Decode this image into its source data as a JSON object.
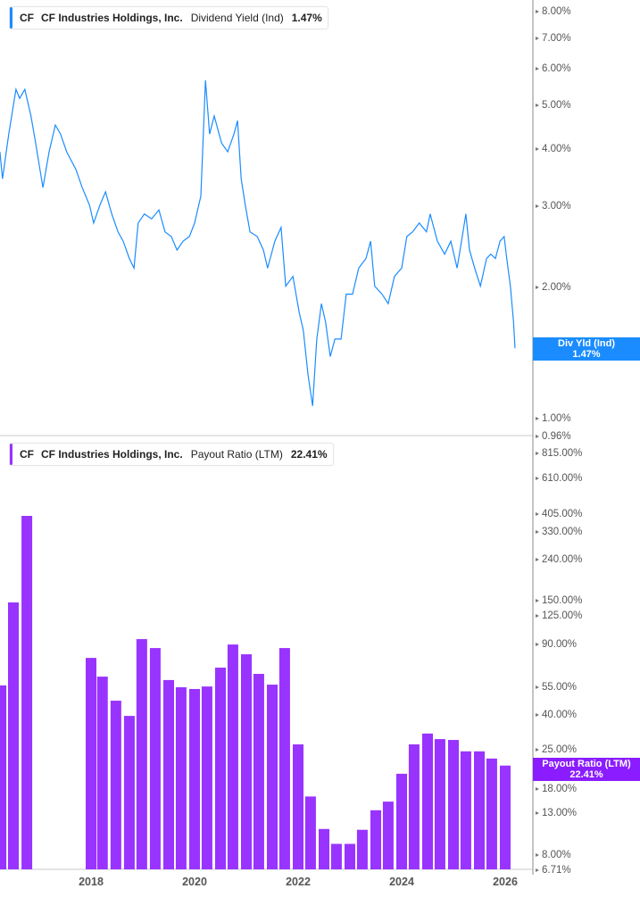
{
  "colors": {
    "yield_line": "#1a8cff",
    "payout_bars": "#9933ff",
    "payout_flag": "#8a1cff",
    "axis": "#b0b0b0"
  },
  "top_legend": {
    "ticker": "CF",
    "company": "CF Industries Holdings, Inc.",
    "metric": "Dividend Yield (Ind)",
    "value": "1.47%"
  },
  "bottom_legend": {
    "ticker": "CF",
    "company": "CF Industries Holdings, Inc.",
    "metric": "Payout Ratio (LTM)",
    "value": "22.41%"
  },
  "top_flag": {
    "label": "Div Yld (Ind)",
    "value": "1.47%"
  },
  "bottom_flag": {
    "label": "Payout Ratio (LTM)",
    "value": "22.41%"
  },
  "chart_data": [
    {
      "type": "line",
      "title": "Dividend Yield (Ind)",
      "yscale": "log",
      "ylim": [
        0.96,
        8.4
      ],
      "xlim": [
        2016.24,
        2026.35
      ],
      "y_ticks": [
        {
          "v": 8,
          "label": "8.00%"
        },
        {
          "v": 7,
          "label": "7.00%"
        },
        {
          "v": 6,
          "label": "6.00%"
        },
        {
          "v": 5,
          "label": "5.00%"
        },
        {
          "v": 4,
          "label": "4.00%"
        },
        {
          "v": 3,
          "label": "3.00%"
        },
        {
          "v": 2,
          "label": "2.00%"
        },
        {
          "v": 1,
          "label": "1.00%"
        },
        {
          "v": 0.96,
          "label": "0.96%"
        }
      ],
      "x": [
        2016.24,
        2016.29,
        2016.41,
        2016.55,
        2016.62,
        2016.72,
        2016.84,
        2016.93,
        2017.07,
        2017.19,
        2017.31,
        2017.41,
        2017.53,
        2017.71,
        2017.83,
        2017.97,
        2018.05,
        2018.17,
        2018.28,
        2018.4,
        2018.52,
        2018.62,
        2018.74,
        2018.83,
        2018.91,
        2019.03,
        2019.17,
        2019.31,
        2019.43,
        2019.55,
        2019.66,
        2019.78,
        2019.9,
        2020.0,
        2020.12,
        2020.21,
        2020.29,
        2020.38,
        2020.52,
        2020.64,
        2020.76,
        2020.83,
        2020.9,
        2020.98,
        2021.07,
        2021.21,
        2021.33,
        2021.41,
        2021.55,
        2021.67,
        2021.76,
        2021.9,
        2022.02,
        2022.1,
        2022.19,
        2022.28,
        2022.36,
        2022.45,
        2022.53,
        2022.62,
        2022.71,
        2022.83,
        2022.93,
        2023.05,
        2023.17,
        2023.31,
        2023.4,
        2023.48,
        2023.62,
        2023.74,
        2023.86,
        2024.0,
        2024.1,
        2024.21,
        2024.34,
        2024.48,
        2024.55,
        2024.69,
        2024.83,
        2024.95,
        2025.07,
        2025.17,
        2025.24,
        2025.31,
        2025.41,
        2025.52,
        2025.64,
        2025.72,
        2025.81,
        2025.9,
        2025.98,
        2026.03,
        2026.1,
        2026.16,
        2026.19
      ],
      "y": [
        3.95,
        3.45,
        4.32,
        5.41,
        5.17,
        5.41,
        4.73,
        4.13,
        3.3,
        3.95,
        4.52,
        4.32,
        3.95,
        3.61,
        3.3,
        3.02,
        2.76,
        3.02,
        3.23,
        2.89,
        2.64,
        2.52,
        2.31,
        2.2,
        2.76,
        2.89,
        2.82,
        2.95,
        2.64,
        2.58,
        2.41,
        2.52,
        2.58,
        2.76,
        3.16,
        5.66,
        4.32,
        4.73,
        4.13,
        3.95,
        4.32,
        4.62,
        3.45,
        3.02,
        2.64,
        2.58,
        2.41,
        2.2,
        2.52,
        2.7,
        2.01,
        2.11,
        1.76,
        1.61,
        1.29,
        1.1,
        1.54,
        1.84,
        1.68,
        1.41,
        1.54,
        1.54,
        1.93,
        1.93,
        2.2,
        2.31,
        2.52,
        2.01,
        1.93,
        1.84,
        2.11,
        2.2,
        2.58,
        2.64,
        2.76,
        2.64,
        2.89,
        2.52,
        2.36,
        2.52,
        2.2,
        2.58,
        2.89,
        2.41,
        2.2,
        2.01,
        2.31,
        2.36,
        2.31,
        2.52,
        2.58,
        2.31,
        2.01,
        1.68,
        1.47
      ]
    },
    {
      "type": "bar",
      "title": "Payout Ratio (LTM)",
      "yscale": "log",
      "ylim": [
        6.71,
        900
      ],
      "y_ticks": [
        {
          "v": 815,
          "label": "815.00%"
        },
        {
          "v": 610,
          "label": "610.00%"
        },
        {
          "v": 405,
          "label": "405.00%"
        },
        {
          "v": 330,
          "label": "330.00%"
        },
        {
          "v": 240,
          "label": "240.00%"
        },
        {
          "v": 150,
          "label": "150.00%"
        },
        {
          "v": 125,
          "label": "125.00%"
        },
        {
          "v": 90,
          "label": "90.00%"
        },
        {
          "v": 55,
          "label": "55.00%"
        },
        {
          "v": 40,
          "label": "40.00%"
        },
        {
          "v": 25,
          "label": "25.00%"
        },
        {
          "v": 18,
          "label": "18.00%"
        },
        {
          "v": 13,
          "label": "13.00%"
        },
        {
          "v": 8,
          "label": "8.00%"
        },
        {
          "v": 6.71,
          "label": "6.71%"
        }
      ],
      "x_ticks": [
        "2018",
        "2020",
        "2022",
        "2024",
        "2026"
      ],
      "x": [
        2016.26,
        2016.5,
        2016.76,
        2018.0,
        2018.22,
        2018.48,
        2018.74,
        2018.98,
        2019.24,
        2019.5,
        2019.74,
        2020.0,
        2020.24,
        2020.5,
        2020.74,
        2021.0,
        2021.24,
        2021.5,
        2021.74,
        2022.0,
        2022.24,
        2022.5,
        2022.74,
        2023.0,
        2023.24,
        2023.5,
        2023.74,
        2024.0,
        2024.24,
        2024.5,
        2024.74,
        2025.0,
        2025.24,
        2025.5,
        2025.74,
        2026.0
      ],
      "values": [
        56.4,
        146.6,
        397,
        77.4,
        62.4,
        47.3,
        39.7,
        96.1,
        86.7,
        60.0,
        55.2,
        54.1,
        55.7,
        69.2,
        90.3,
        80.7,
        64.4,
        56.9,
        86.7,
        28.6,
        15.7,
        10.8,
        9.1,
        9.1,
        10.7,
        13.4,
        14.8,
        20.4,
        28.6,
        32.4,
        30.4,
        30.1,
        26.4,
        26.4,
        24.3,
        22.41
      ]
    }
  ]
}
